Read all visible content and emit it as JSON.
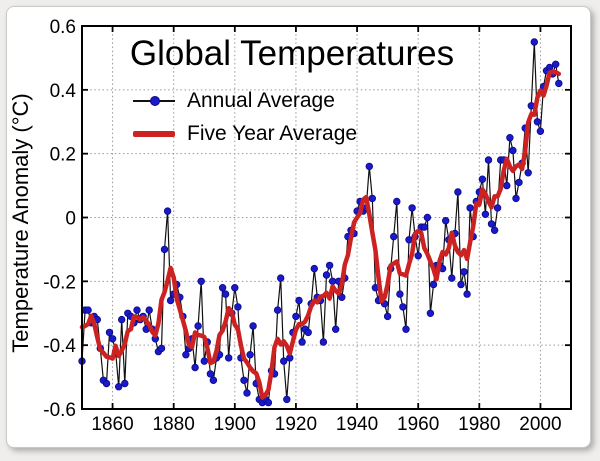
{
  "chart": {
    "title": "Global Temperatures",
    "ylabel": "Temperature Anomaly (°C)",
    "legend": [
      {
        "label": "Annual Average",
        "marker": "blue-dot-on-black-line",
        "marker_color": "#1a1acc",
        "line_color": "#111111"
      },
      {
        "label": "Five Year Average",
        "marker": "thick-red-line",
        "color": "#cc2222"
      }
    ]
  },
  "chart_data": {
    "type": "line",
    "title": "Global Temperatures",
    "xlabel": "",
    "ylabel": "Temperature Anomaly (°C)",
    "xlim": [
      1850,
      2010
    ],
    "ylim": [
      -0.6,
      0.6
    ],
    "x_ticks": [
      1860,
      1880,
      1900,
      1920,
      1940,
      1960,
      1980,
      2000
    ],
    "y_tick_values": [
      0.6,
      0.4,
      0.2,
      0,
      -0.2,
      -0.4,
      -0.6
    ],
    "y_tick_labels": [
      "0.6",
      "0.4",
      "0.2",
      "0",
      "-0.2",
      "-0.4",
      "-0.6"
    ],
    "grid": "dotted gray at every tick",
    "legend_position": "upper left inside plot",
    "series": [
      {
        "name": "Annual Average",
        "style": "thin black line with blue circle markers",
        "marker_color": "#1a1acc",
        "line_color": "#111111",
        "start_year": 1850,
        "end_year": 2006,
        "values": [
          -0.45,
          -0.29,
          -0.29,
          -0.33,
          -0.31,
          -0.32,
          -0.41,
          -0.51,
          -0.52,
          -0.36,
          -0.38,
          -0.42,
          -0.53,
          -0.32,
          -0.52,
          -0.3,
          -0.31,
          -0.33,
          -0.29,
          -0.32,
          -0.31,
          -0.35,
          -0.29,
          -0.35,
          -0.38,
          -0.42,
          -0.41,
          -0.1,
          0.02,
          -0.26,
          -0.24,
          -0.21,
          -0.25,
          -0.31,
          -0.43,
          -0.41,
          -0.38,
          -0.47,
          -0.34,
          -0.2,
          -0.45,
          -0.39,
          -0.49,
          -0.51,
          -0.44,
          -0.43,
          -0.22,
          -0.24,
          -0.44,
          -0.3,
          -0.22,
          -0.28,
          -0.44,
          -0.51,
          -0.55,
          -0.43,
          -0.34,
          -0.52,
          -0.57,
          -0.58,
          -0.57,
          -0.58,
          -0.48,
          -0.49,
          -0.29,
          -0.19,
          -0.45,
          -0.57,
          -0.44,
          -0.36,
          -0.31,
          -0.26,
          -0.39,
          -0.35,
          -0.36,
          -0.27,
          -0.16,
          -0.25,
          -0.26,
          -0.39,
          -0.18,
          -0.15,
          -0.2,
          -0.35,
          -0.2,
          -0.25,
          -0.19,
          -0.06,
          -0.04,
          -0.05,
          0.02,
          0.05,
          0.02,
          0.03,
          0.16,
          0.06,
          -0.22,
          -0.26,
          -0.25,
          -0.27,
          -0.31,
          -0.16,
          -0.06,
          0.05,
          -0.24,
          -0.28,
          -0.35,
          -0.07,
          0.03,
          -0.06,
          -0.12,
          -0.03,
          -0.03,
          0.0,
          -0.3,
          -0.21,
          -0.15,
          -0.15,
          -0.16,
          -0.01,
          -0.07,
          -0.19,
          -0.05,
          0.08,
          -0.21,
          -0.17,
          -0.24,
          0.03,
          -0.06,
          0.05,
          0.08,
          0.12,
          0.01,
          0.18,
          -0.02,
          -0.04,
          0.03,
          0.18,
          0.18,
          0.1,
          0.25,
          0.21,
          0.06,
          0.11,
          0.17,
          0.28,
          0.14,
          0.35,
          0.55,
          0.3,
          0.27,
          0.41,
          0.46,
          0.47,
          0.45,
          0.48,
          0.42
        ]
      },
      {
        "name": "Five Year Average",
        "style": "thick red line",
        "color": "#cc2222",
        "derivation": "5-year centered moving average of the Annual Average values (window shrinks at series ends)"
      }
    ]
  }
}
